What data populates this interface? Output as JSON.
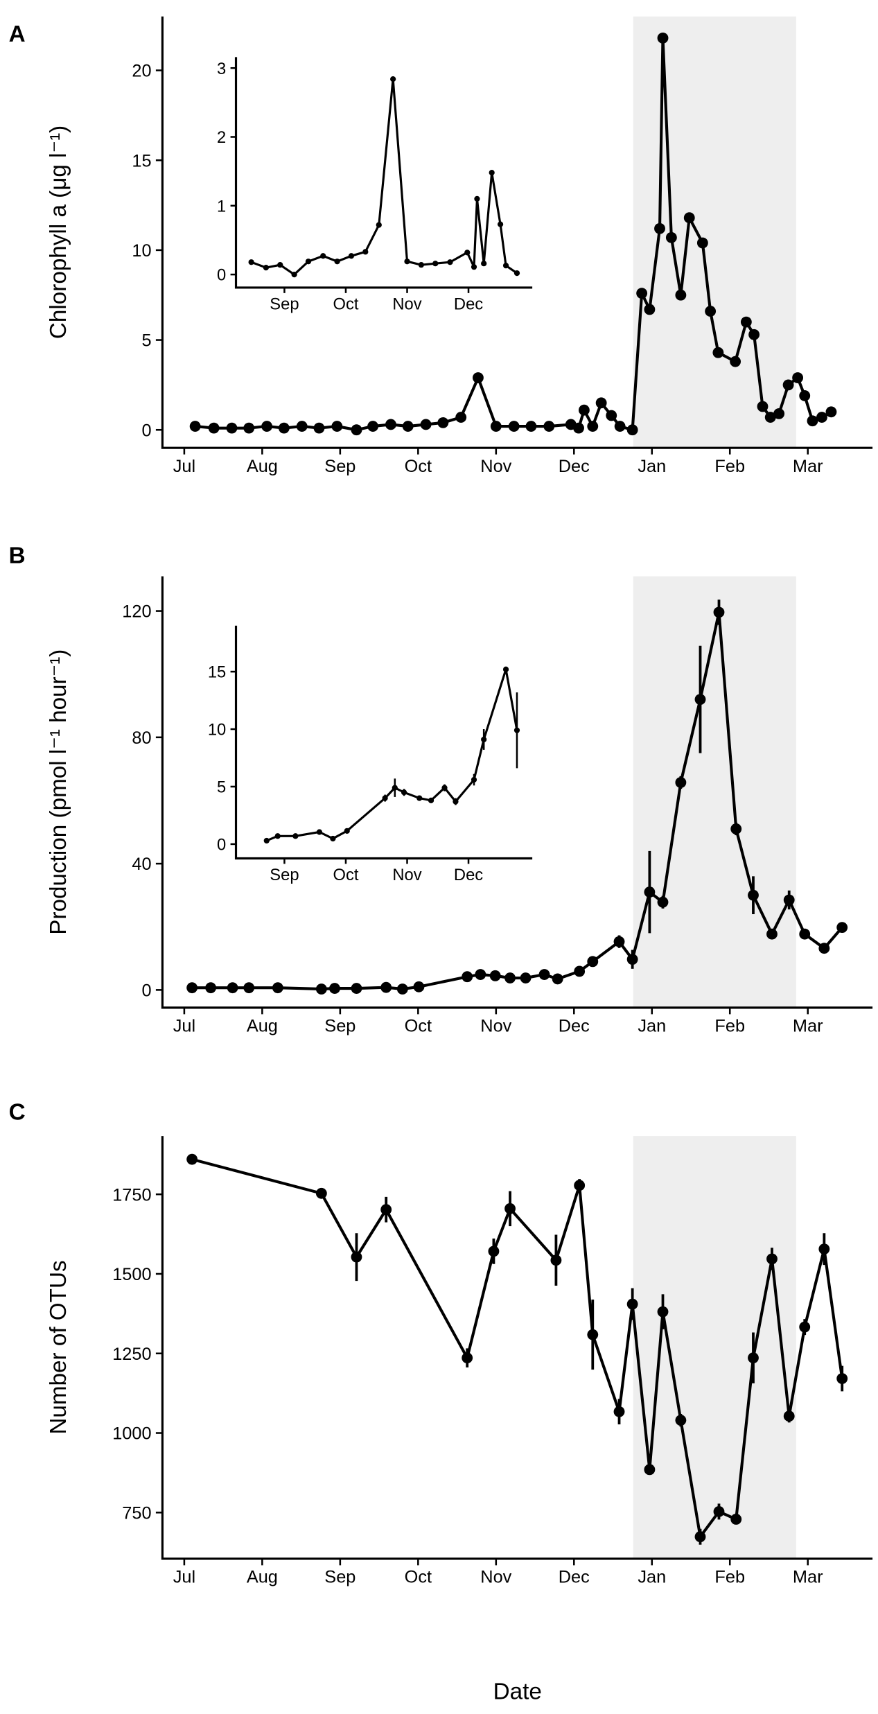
{
  "chart_data": [
    {
      "type": "line",
      "panel": "A",
      "ylabel": "Chlorophyll a (μg l⁻¹)",
      "color": "#000000",
      "shade": [
        5.76,
        7.85
      ],
      "shade_color": "#eeeeee",
      "x": [
        0.14,
        0.38,
        0.61,
        0.83,
        1.06,
        1.28,
        1.51,
        1.73,
        1.96,
        2.21,
        2.42,
        2.65,
        2.87,
        3.1,
        3.32,
        3.55,
        3.77,
        4.0,
        4.23,
        4.45,
        4.68,
        4.96,
        5.06,
        5.13,
        5.24,
        5.35,
        5.48,
        5.59,
        5.75,
        5.87,
        5.97,
        6.1,
        6.14,
        6.25,
        6.37,
        6.48,
        6.65,
        6.75,
        6.85,
        7.07,
        7.21,
        7.31,
        7.42,
        7.52,
        7.63,
        7.75,
        7.87,
        7.96,
        8.06,
        8.18,
        8.3
      ],
      "values": [
        0.2,
        0.1,
        0.1,
        0.1,
        0.2,
        0.1,
        0.2,
        0.1,
        0.2,
        0,
        0.2,
        0.3,
        0.2,
        0.3,
        0.4,
        0.7,
        2.9,
        0.2,
        0.2,
        0.2,
        0.2,
        0.3,
        0.1,
        1.1,
        0.2,
        1.5,
        0.8,
        0.2,
        0,
        7.6,
        6.7,
        11.2,
        21.8,
        10.7,
        7.5,
        11.8,
        10.4,
        6.6,
        4.3,
        3.8,
        6,
        5.3,
        1.3,
        0.7,
        0.9,
        2.5,
        2.9,
        1.9,
        0.5,
        0.7,
        1.0
      ],
      "xlim": [
        -0.28,
        8.83
      ],
      "ylim": [
        -1,
        23
      ],
      "yticks": [
        0,
        5,
        10,
        15,
        20
      ],
      "xticks": [
        {
          "value": 0,
          "label": "Jul"
        },
        {
          "value": 1,
          "label": "Aug"
        },
        {
          "value": 2,
          "label": "Sep"
        },
        {
          "value": 3,
          "label": "Oct"
        },
        {
          "value": 4,
          "label": "Nov"
        },
        {
          "value": 5,
          "label": "Dec"
        },
        {
          "value": 6,
          "label": "Jan"
        },
        {
          "value": 7,
          "label": "Feb"
        },
        {
          "value": 8,
          "label": "Mar"
        }
      ]
    },
    {
      "type": "line",
      "color": "#000000",
      "x": [
        1.46,
        1.7,
        1.93,
        2.16,
        2.39,
        2.63,
        2.86,
        3.09,
        3.32,
        3.54,
        3.77,
        4.0,
        4.23,
        4.46,
        4.7,
        4.98,
        5.09,
        5.14,
        5.25,
        5.38,
        5.52,
        5.61,
        5.79
      ],
      "values": [
        0.18,
        0.1,
        0.14,
        0,
        0.19,
        0.27,
        0.19,
        0.27,
        0.33,
        0.72,
        2.84,
        0.19,
        0.14,
        0.16,
        0.18,
        0.32,
        0.11,
        1.1,
        0.16,
        1.48,
        0.73,
        0.13,
        0.02
      ],
      "xlim": [
        1.21,
        6.04
      ],
      "ylim": [
        -0.19,
        3.16
      ],
      "yticks": [
        0,
        1,
        2,
        3
      ],
      "xticks": [
        {
          "value": 2,
          "label": "Sep"
        },
        {
          "value": 3,
          "label": "Oct"
        },
        {
          "value": 4,
          "label": "Nov"
        },
        {
          "value": 5,
          "label": "Dec"
        }
      ]
    },
    {
      "type": "line",
      "panel": "B",
      "ylabel": "Production (pmol l⁻¹ hour⁻¹)",
      "color": "#000000",
      "shade": [
        5.76,
        7.85
      ],
      "shade_color": "#eeeeee",
      "x": [
        0.1,
        0.34,
        0.62,
        0.83,
        1.2,
        1.76,
        1.93,
        2.21,
        2.59,
        2.8,
        3.01,
        3.63,
        3.8,
        3.99,
        4.18,
        4.38,
        4.62,
        4.79,
        5.07,
        5.24,
        5.58,
        5.75,
        5.97,
        6.14,
        6.37,
        6.62,
        6.86,
        7.08,
        7.3,
        7.54,
        7.76,
        7.96,
        8.21,
        8.44
      ],
      "values": [
        0.7,
        0.7,
        0.7,
        0.7,
        0.7,
        0.3,
        0.5,
        0.5,
        0.8,
        0.3,
        1.0,
        4.2,
        4.9,
        4.5,
        3.8,
        3.8,
        4.9,
        3.5,
        5.9,
        9.0,
        15.3,
        9.7,
        31,
        27.8,
        65.7,
        92,
        119.6,
        51,
        30,
        17.7,
        28.5,
        17.7,
        13.2,
        19.8
      ],
      "errors": [
        0.3,
        0.3,
        0.3,
        0.3,
        0.3,
        0.2,
        0.3,
        0.3,
        0.4,
        0.2,
        0.4,
        0.8,
        1.0,
        0.6,
        0.5,
        0.5,
        0.6,
        0.5,
        1.0,
        1.0,
        2.0,
        3.0,
        13,
        2.0,
        2.0,
        17,
        4,
        2.0,
        6,
        1.5,
        3,
        1.0,
        1.0,
        1.0
      ],
      "xlim": [
        -0.28,
        8.83
      ],
      "ylim": [
        -5.6,
        131
      ],
      "yticks": [
        0,
        40,
        80,
        120
      ],
      "xticks": [
        {
          "value": 0,
          "label": "Jul"
        },
        {
          "value": 1,
          "label": "Aug"
        },
        {
          "value": 2,
          "label": "Sep"
        },
        {
          "value": 3,
          "label": "Oct"
        },
        {
          "value": 4,
          "label": "Nov"
        },
        {
          "value": 5,
          "label": "Dec"
        },
        {
          "value": 6,
          "label": "Jan"
        },
        {
          "value": 7,
          "label": "Feb"
        },
        {
          "value": 8,
          "label": "Mar"
        }
      ]
    },
    {
      "type": "line",
      "color": "#000000",
      "x": [
        1.71,
        1.89,
        2.18,
        2.57,
        2.79,
        3.02,
        3.64,
        3.8,
        3.95,
        4.2,
        4.39,
        4.61,
        4.79,
        5.09,
        5.25,
        5.61,
        5.79
      ],
      "values": [
        0.3,
        0.7,
        0.7,
        1.05,
        0.48,
        1.15,
        4.0,
        4.9,
        4.5,
        4.0,
        3.8,
        4.9,
        3.7,
        5.6,
        9.1,
        15.2,
        9.9
      ],
      "errors": [
        0.1,
        0.1,
        0.1,
        0.1,
        0.1,
        0.1,
        0.3,
        0.8,
        0.3,
        0.2,
        0.2,
        0.3,
        0.3,
        0.5,
        0.9,
        0.2,
        3.3
      ],
      "xlim": [
        1.21,
        6.04
      ],
      "ylim": [
        -1.24,
        19
      ],
      "yticks": [
        0,
        5,
        10,
        15
      ],
      "xticks": [
        {
          "value": 2,
          "label": "Sep"
        },
        {
          "value": 3,
          "label": "Oct"
        },
        {
          "value": 4,
          "label": "Nov"
        },
        {
          "value": 5,
          "label": "Dec"
        }
      ]
    },
    {
      "type": "line",
      "panel": "C",
      "ylabel": "Number of OTUs",
      "xlabel": "Date",
      "color": "#000000",
      "shade": [
        5.76,
        7.85
      ],
      "shade_color": "#eeeeee",
      "x": [
        0.1,
        1.76,
        2.21,
        2.59,
        3.63,
        3.97,
        4.18,
        4.77,
        5.07,
        5.24,
        5.58,
        5.75,
        5.97,
        6.14,
        6.37,
        6.62,
        6.86,
        7.08,
        7.3,
        7.54,
        7.76,
        7.96,
        8.21,
        8.44
      ],
      "values": [
        1860,
        1753,
        1553,
        1702,
        1236,
        1571,
        1705,
        1543,
        1778,
        1309,
        1067,
        1405,
        885,
        1381,
        1040,
        674,
        753,
        729,
        1236,
        1547,
        1053,
        1333,
        1578,
        1171
      ],
      "errors": [
        10,
        10,
        75,
        40,
        30,
        40,
        55,
        80,
        20,
        110,
        40,
        50,
        15,
        55,
        20,
        25,
        25,
        15,
        80,
        35,
        20,
        25,
        50,
        40
      ],
      "xlim": [
        -0.28,
        8.83
      ],
      "ylim": [
        605,
        1933
      ],
      "yticks": [
        750,
        1000,
        1250,
        1500,
        1750
      ],
      "xticks": [
        {
          "value": 0,
          "label": "Jul"
        },
        {
          "value": 1,
          "label": "Aug"
        },
        {
          "value": 2,
          "label": "Sep"
        },
        {
          "value": 3,
          "label": "Oct"
        },
        {
          "value": 4,
          "label": "Nov"
        },
        {
          "value": 5,
          "label": "Dec"
        },
        {
          "value": 6,
          "label": "Jan"
        },
        {
          "value": 7,
          "label": "Feb"
        },
        {
          "value": 8,
          "label": "Mar"
        }
      ]
    }
  ]
}
